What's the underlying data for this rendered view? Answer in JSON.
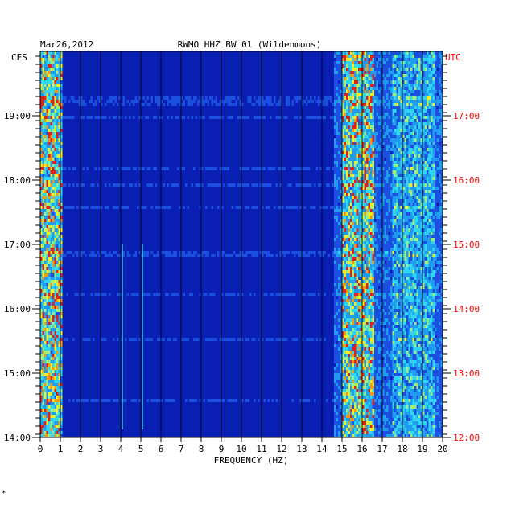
{
  "header": {
    "date": "Mar26,2012",
    "station": "RWMO HHZ BW 01 (Wildenmoos)"
  },
  "axis_labels": {
    "left_zone": "CES",
    "right_zone": "UTC",
    "x_title": "FREQUENCY (HZ)"
  },
  "footnote": "*",
  "colors": {
    "background": "#ffffff",
    "spectrogram_base": "#0a1fb4",
    "utc_text": "#ff0000",
    "gridline": "#000000"
  },
  "chart_data": {
    "type": "heatmap",
    "title": "RWMO HHZ BW 01 (Wildenmoos)",
    "xlabel": "FREQUENCY (HZ)",
    "xlim": [
      0,
      20
    ],
    "x_ticks": [
      "0",
      "1",
      "2",
      "3",
      "4",
      "5",
      "6",
      "7",
      "8",
      "9",
      "10",
      "11",
      "12",
      "13",
      "14",
      "15",
      "16",
      "17",
      "18",
      "19",
      "20"
    ],
    "left_ticks": [
      "19:00",
      "18:00",
      "17:00",
      "16:00",
      "15:00",
      "14:00"
    ],
    "right_ticks": [
      "17:00",
      "16:00",
      "15:00",
      "14:00",
      "13:00",
      "12:00"
    ],
    "grid": true,
    "energy_bands_hz": [
      {
        "from": 0,
        "to": 1,
        "level": "high"
      },
      {
        "from": 15,
        "to": 16.5,
        "level": "high"
      },
      {
        "from": 17.5,
        "to": 19.5,
        "level": "medium"
      }
    ],
    "narrow_lines_hz": [
      4,
      5
    ]
  }
}
